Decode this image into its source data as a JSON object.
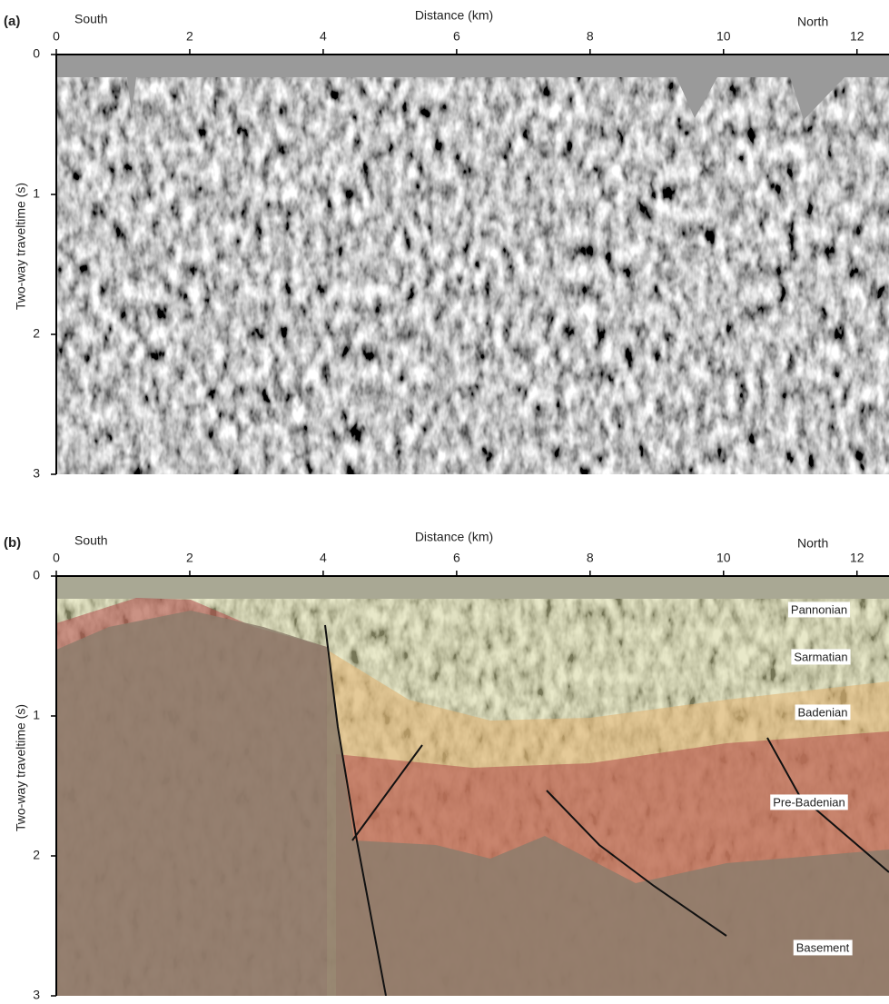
{
  "panels": [
    {
      "label": "(a)",
      "x_axis_title": "Distance (km)",
      "y_axis_title": "Two-way traveltime (s)",
      "left_label": "South",
      "right_label": "North",
      "xlim": [
        0,
        12.48
      ],
      "ylim": [
        0,
        3
      ],
      "xticks": [
        0,
        2,
        4,
        6,
        8,
        10,
        12
      ],
      "yticks": [
        0,
        1,
        2,
        3
      ]
    },
    {
      "label": "(b)",
      "x_axis_title": "Distance (km)",
      "y_axis_title": "Two-way traveltime (s)",
      "left_label": "South",
      "right_label": "North",
      "xlim": [
        0,
        12.48
      ],
      "ylim": [
        0,
        3
      ],
      "xticks": [
        0,
        2,
        4,
        6,
        8,
        10,
        12
      ],
      "yticks": [
        0,
        1,
        2,
        3
      ],
      "layers": [
        "Pannonian",
        "Sarmatian",
        "Badenian",
        "Pre-Badenian",
        "Basement"
      ]
    }
  ]
}
